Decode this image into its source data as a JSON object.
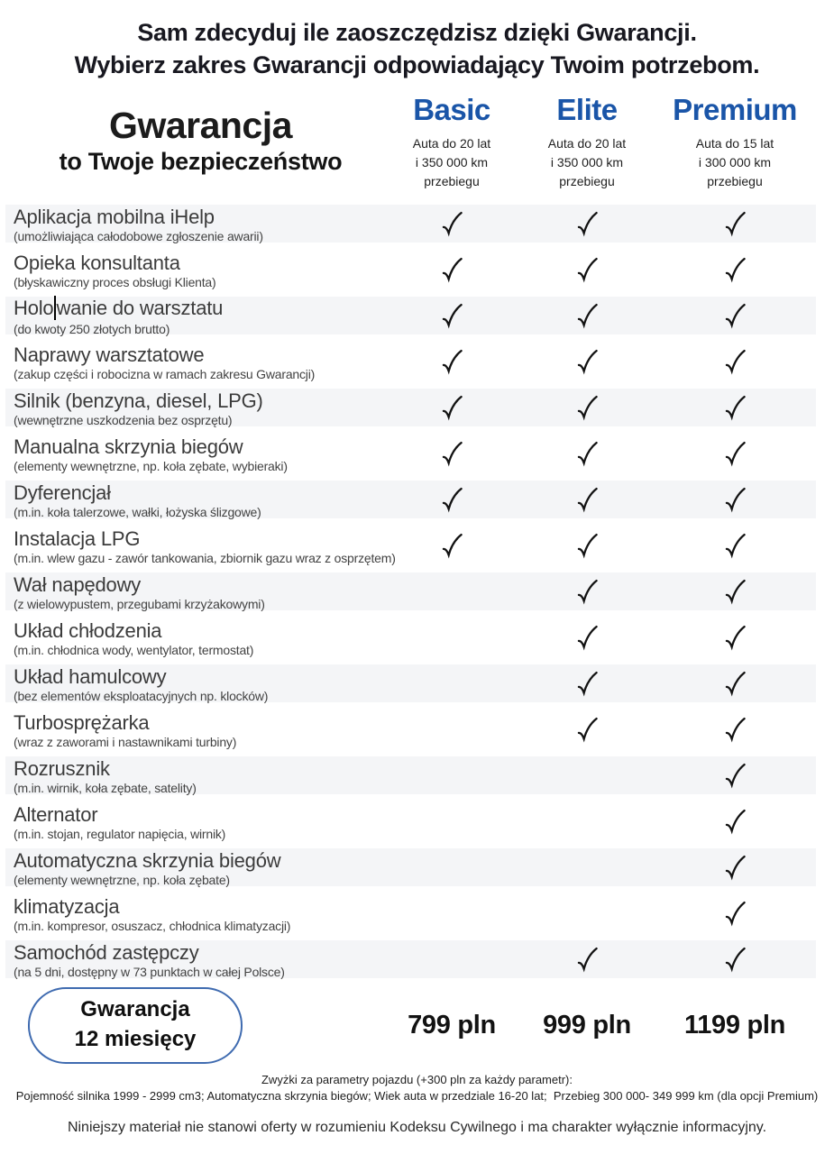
{
  "intro": {
    "line1": "Sam zdecyduj ile zaoszczędzisz dzięki Gwarancji.",
    "line2": "Wybierz zakres Gwarancji odpowiadający Twoim potrzebom."
  },
  "table": {
    "title": "Gwarancja",
    "subtitle": "to Twoje bezpieczeństwo",
    "plans": [
      {
        "name": "Basic",
        "desc_lines": [
          "Auta do 20 lat",
          "i 350 000 km",
          "przebiegu"
        ],
        "price": "799 pln"
      },
      {
        "name": "Elite",
        "desc_lines": [
          "Auta do 20 lat",
          "i 350 000 km",
          "przebiegu"
        ],
        "price": "999 pln"
      },
      {
        "name": "Premium",
        "desc_lines": [
          "Auta do 15 lat",
          "i 300 000 km",
          "przebiegu"
        ],
        "price": "1199 pln"
      }
    ],
    "rows": [
      {
        "title": "Aplikacja mobilna iHelp",
        "subtitle": "(umożliwiająca całodobowe zgłoszenie awarii)",
        "checks": [
          true,
          true,
          true
        ]
      },
      {
        "title": "Opieka konsultanta",
        "subtitle": "(błyskawiczny proces obsługi Klienta)",
        "checks": [
          true,
          true,
          true
        ]
      },
      {
        "title": "Holowanie do warsztatu",
        "subtitle": "(do kwoty 250 złotych brutto)",
        "checks": [
          true,
          true,
          true
        ],
        "caret_split": [
          "Holo",
          "wanie do warsztatu"
        ]
      },
      {
        "title": "Naprawy warsztatowe",
        "subtitle": "(zakup części i robocizna w ramach zakresu Gwarancji)",
        "checks": [
          true,
          true,
          true
        ]
      },
      {
        "title": "Silnik (benzyna, diesel, LPG)",
        "subtitle": "(wewnętrzne uszkodzenia bez osprzętu)",
        "checks": [
          true,
          true,
          true
        ]
      },
      {
        "title": "Manualna skrzynia biegów",
        "subtitle": "(elementy wewnętrzne, np. koła zębate, wybieraki)",
        "checks": [
          true,
          true,
          true
        ]
      },
      {
        "title": "Dyferencjał",
        "subtitle": "(m.in. koła talerzowe, wałki, łożyska ślizgowe)",
        "checks": [
          true,
          true,
          true
        ]
      },
      {
        "title": "Instalacja LPG",
        "subtitle": "(m.in. wlew gazu - zawór tankowania, zbiornik gazu wraz z osprzętem)",
        "checks": [
          true,
          true,
          true
        ]
      },
      {
        "title": "Wał napędowy",
        "subtitle": "(z wielowypustem, przegubami krzyżakowymi)",
        "checks": [
          false,
          true,
          true
        ]
      },
      {
        "title": "Układ chłodzenia",
        "subtitle": "(m.in. chłodnica wody, wentylator, termostat)",
        "checks": [
          false,
          true,
          true
        ]
      },
      {
        "title": "Układ hamulcowy",
        "subtitle": "(bez elementów eksploatacyjnych  np. klocków)",
        "checks": [
          false,
          true,
          true
        ]
      },
      {
        "title": "Turbosprężarka",
        "subtitle": "(wraz z zaworami i nastawnikami turbiny)",
        "checks": [
          false,
          true,
          true
        ]
      },
      {
        "title": "Rozrusznik",
        "subtitle": "(m.in. wirnik, koła zębate, satelity)",
        "checks": [
          false,
          false,
          true
        ]
      },
      {
        "title": "Alternator",
        "subtitle": "(m.in. stojan, regulator napięcia, wirnik)",
        "checks": [
          false,
          false,
          true
        ]
      },
      {
        "title": "Automatyczna skrzynia biegów",
        "subtitle": "(elementy wewnętrzne, np. koła zębate)",
        "checks": [
          false,
          false,
          true
        ]
      },
      {
        "title": "klimatyzacja",
        "subtitle": "(m.in. kompresor, osuszacz, chłodnica klimatyzacji)",
        "checks": [
          false,
          false,
          true
        ]
      },
      {
        "title": "Samochód zastępczy",
        "subtitle": "(na 5 dni, dostępny w 73 punktach w całej Polsce)",
        "checks": [
          false,
          true,
          true
        ]
      }
    ]
  },
  "footer": {
    "duration_line1": "Gwarancja",
    "duration_line2": "12 miesięcy",
    "note1": "Zwyżki za parametry pojazdu (+300 pln za każdy parametr):",
    "note2": "Pojemność silnika 1999 - 2999 cm3; Automatyczna skrzynia biegów; Wiek auta w przedziale 16-20 lat;  Przebieg 300 000- 349 999 km (dla opcji Premium)",
    "disclaimer": "Niniejszy materiał nie stanowi oferty w rozumieniu Kodeksu Cywilnego i ma charakter wyłącznie informacyjny."
  },
  "icons": {
    "check": "✓"
  },
  "colors": {
    "plan_name": "#1a55a8",
    "stripe": "#f4f5f7",
    "pill_border": "#3f6bb0",
    "check": "#121212"
  }
}
